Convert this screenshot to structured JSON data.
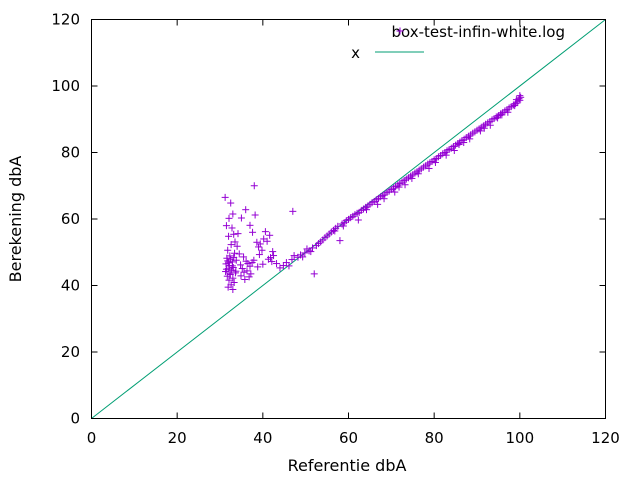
{
  "chart_data": {
    "type": "scatter",
    "title": "",
    "xlabel": "Referentie dbA",
    "ylabel": "Berekening dbA",
    "xlim": [
      0,
      120
    ],
    "ylim": [
      0,
      120
    ],
    "xticks": [
      "0",
      "20",
      "40",
      "60",
      "80",
      "100",
      "120"
    ],
    "yticks": [
      "0",
      "20",
      "40",
      "60",
      "80",
      "100",
      "120"
    ],
    "grid": false,
    "legend_position": "top-right",
    "colors": {
      "points": "#9400d3",
      "line": "#009e73"
    },
    "series": [
      {
        "name": "box-test-infin-white.log",
        "kind": "points",
        "marker": "plus",
        "points": [
          [
            31.2,
            66.5
          ],
          [
            32.1,
            60.2
          ],
          [
            32.5,
            64.8
          ],
          [
            33.0,
            61.5
          ],
          [
            32.8,
            57.3
          ],
          [
            31.5,
            58.0
          ],
          [
            33.2,
            55.4
          ],
          [
            32.0,
            54.8
          ],
          [
            33.5,
            53.1
          ],
          [
            34.0,
            51.8
          ],
          [
            32.6,
            52.3
          ],
          [
            31.8,
            50.6
          ],
          [
            33.4,
            49.7
          ],
          [
            32.3,
            48.9
          ],
          [
            31.6,
            48.2
          ],
          [
            33.8,
            47.6
          ],
          [
            32.9,
            47.1
          ],
          [
            31.4,
            46.5
          ],
          [
            32.2,
            46.0
          ],
          [
            33.1,
            45.4
          ],
          [
            31.9,
            45.0
          ],
          [
            32.7,
            44.6
          ],
          [
            31.3,
            44.2
          ],
          [
            33.6,
            43.8
          ],
          [
            32.4,
            43.3
          ],
          [
            31.7,
            42.8
          ],
          [
            33.0,
            42.2
          ],
          [
            32.1,
            41.6
          ],
          [
            33.3,
            40.9
          ],
          [
            32.6,
            40.2
          ],
          [
            31.9,
            39.5
          ],
          [
            33.0,
            38.8
          ],
          [
            32.5,
            47.9
          ],
          [
            32.0,
            46.8
          ],
          [
            32.9,
            45.9
          ],
          [
            31.5,
            44.9
          ],
          [
            33.7,
            44.3
          ],
          [
            32.3,
            43.7
          ],
          [
            31.8,
            47.4
          ],
          [
            33.2,
            48.4
          ],
          [
            34.5,
            49.5
          ],
          [
            34.8,
            46.2
          ],
          [
            35.2,
            45.1
          ],
          [
            35.6,
            44.0
          ],
          [
            34.9,
            42.9
          ],
          [
            35.8,
            41.8
          ],
          [
            36.1,
            47.3
          ],
          [
            36.5,
            46.6
          ],
          [
            37.0,
            45.8
          ],
          [
            36.3,
            44.4
          ],
          [
            37.2,
            43.5
          ],
          [
            36.8,
            42.6
          ],
          [
            37.5,
            46.9
          ],
          [
            35.5,
            48.6
          ],
          [
            34.2,
            55.6
          ],
          [
            35.0,
            60.3
          ],
          [
            36.0,
            62.8
          ],
          [
            37.0,
            58.1
          ],
          [
            37.6,
            56.0
          ],
          [
            38.0,
            70.0
          ],
          [
            38.2,
            61.2
          ],
          [
            38.6,
            53.0
          ],
          [
            39.0,
            51.6
          ],
          [
            39.4,
            52.5
          ],
          [
            39.8,
            50.6
          ],
          [
            40.2,
            54.0
          ],
          [
            40.6,
            56.2
          ],
          [
            41.0,
            53.3
          ],
          [
            41.3,
            47.9
          ],
          [
            41.8,
            48.4
          ],
          [
            42.1,
            47.2
          ],
          [
            42.5,
            49.0
          ],
          [
            40.0,
            46.4
          ],
          [
            38.8,
            45.6
          ],
          [
            37.9,
            47.6
          ],
          [
            39.2,
            49.3
          ],
          [
            41.6,
            55.1
          ],
          [
            42.3,
            50.2
          ],
          [
            43.2,
            46.6
          ],
          [
            44.0,
            45.3
          ],
          [
            44.8,
            46.0
          ],
          [
            45.5,
            46.9
          ],
          [
            46.1,
            45.9
          ],
          [
            46.8,
            47.8
          ],
          [
            47.3,
            49.0
          ],
          [
            47.0,
            62.3
          ],
          [
            48.2,
            48.5
          ],
          [
            48.8,
            49.2
          ],
          [
            49.3,
            48.6
          ],
          [
            49.8,
            49.8
          ],
          [
            50.3,
            51.0
          ],
          [
            50.8,
            50.4
          ],
          [
            51.2,
            50.2
          ],
          [
            51.6,
            51.3
          ],
          [
            52.0,
            43.5
          ],
          [
            52.5,
            52.0
          ],
          [
            53.0,
            52.6
          ],
          [
            53.5,
            53.1
          ],
          [
            54.0,
            53.7
          ],
          [
            54.5,
            54.4
          ],
          [
            55.0,
            54.9
          ],
          [
            55.5,
            55.5
          ],
          [
            56.0,
            56.1
          ],
          [
            56.5,
            56.6
          ],
          [
            57.0,
            57.2
          ],
          [
            57.5,
            57.8
          ],
          [
            58.0,
            53.5
          ],
          [
            58.5,
            58.5
          ],
          [
            59.0,
            58.9
          ],
          [
            59.5,
            59.5
          ],
          [
            60.0,
            59.9
          ],
          [
            60.5,
            60.4
          ],
          [
            61.0,
            60.8
          ],
          [
            61.5,
            61.3
          ],
          [
            62.0,
            61.7
          ],
          [
            62.5,
            62.0
          ],
          [
            63.0,
            62.6
          ],
          [
            63.5,
            63.0
          ],
          [
            64.0,
            63.5
          ],
          [
            64.5,
            63.9
          ],
          [
            65.0,
            64.4
          ],
          [
            65.5,
            64.9
          ],
          [
            66.0,
            65.3
          ],
          [
            66.5,
            65.8
          ],
          [
            67.0,
            66.2
          ],
          [
            67.5,
            66.7
          ],
          [
            68.0,
            67.1
          ],
          [
            68.5,
            67.5
          ],
          [
            69.0,
            68.0
          ],
          [
            69.5,
            68.4
          ],
          [
            70.0,
            68.9
          ],
          [
            70.5,
            69.3
          ],
          [
            71.0,
            69.8
          ],
          [
            71.5,
            70.2
          ],
          [
            72.0,
            70.7
          ],
          [
            72.5,
            71.1
          ],
          [
            73.0,
            71.6
          ],
          [
            73.5,
            72.0
          ],
          [
            74.0,
            72.4
          ],
          [
            74.5,
            72.9
          ],
          [
            75.0,
            73.3
          ],
          [
            75.5,
            73.8
          ],
          [
            76.0,
            74.2
          ],
          [
            76.5,
            74.7
          ],
          [
            77.0,
            75.1
          ],
          [
            77.5,
            75.6
          ],
          [
            78.0,
            76.0
          ],
          [
            78.5,
            76.5
          ],
          [
            79.0,
            76.9
          ],
          [
            79.5,
            77.3
          ],
          [
            80.0,
            77.8
          ],
          [
            80.5,
            78.2
          ],
          [
            81.0,
            78.7
          ],
          [
            81.5,
            79.1
          ],
          [
            82.0,
            79.6
          ],
          [
            82.5,
            80.0
          ],
          [
            83.0,
            80.5
          ],
          [
            83.5,
            80.9
          ],
          [
            84.0,
            81.3
          ],
          [
            84.5,
            81.8
          ],
          [
            85.0,
            82.2
          ],
          [
            85.5,
            82.7
          ],
          [
            86.0,
            83.1
          ],
          [
            86.5,
            83.6
          ],
          [
            87.0,
            84.0
          ],
          [
            87.5,
            84.5
          ],
          [
            88.0,
            84.9
          ],
          [
            88.5,
            85.3
          ],
          [
            89.0,
            85.8
          ],
          [
            89.5,
            86.2
          ],
          [
            90.0,
            86.7
          ],
          [
            90.5,
            87.1
          ],
          [
            91.0,
            87.6
          ],
          [
            91.5,
            88.0
          ],
          [
            92.0,
            88.5
          ],
          [
            92.5,
            88.9
          ],
          [
            93.0,
            89.3
          ],
          [
            93.5,
            89.8
          ],
          [
            94.0,
            90.2
          ],
          [
            94.5,
            90.7
          ],
          [
            95.0,
            91.1
          ],
          [
            95.5,
            91.6
          ],
          [
            96.0,
            92.0
          ],
          [
            96.5,
            92.5
          ],
          [
            97.0,
            92.9
          ],
          [
            97.5,
            93.4
          ],
          [
            98.0,
            93.8
          ],
          [
            98.5,
            94.3
          ],
          [
            99.0,
            94.7
          ],
          [
            99.5,
            95.2
          ],
          [
            100.0,
            95.7
          ],
          [
            100.2,
            96.6
          ],
          [
            99.8,
            96.2
          ],
          [
            99.2,
            95.9
          ],
          [
            100.0,
            97.1
          ],
          [
            62.3,
            59.7
          ],
          [
            66.8,
            64.4
          ],
          [
            73.2,
            70.3
          ],
          [
            78.8,
            75.2
          ],
          [
            84.7,
            80.6
          ],
          [
            88.3,
            84.1
          ],
          [
            93.1,
            88.2
          ],
          [
            97.2,
            92.1
          ],
          [
            58.8,
            57.9
          ],
          [
            64.2,
            62.8
          ],
          [
            70.8,
            68.1
          ],
          [
            76.3,
            73.6
          ],
          [
            82.8,
            79.2
          ],
          [
            86.9,
            83.0
          ],
          [
            91.7,
            87.3
          ],
          [
            95.8,
            91.3
          ],
          [
            98.8,
            94.1
          ],
          [
            68.3,
            66.1
          ],
          [
            80.3,
            77.0
          ],
          [
            90.8,
            86.5
          ],
          [
            74.8,
            72.2
          ],
          [
            85.8,
            82.4
          ],
          [
            94.8,
            90.4
          ],
          [
            56.8,
            56.4
          ],
          [
            71.8,
            69.6
          ]
        ]
      },
      {
        "name": "x",
        "kind": "line",
        "points": [
          [
            0,
            0
          ],
          [
            120,
            120
          ]
        ]
      }
    ]
  }
}
